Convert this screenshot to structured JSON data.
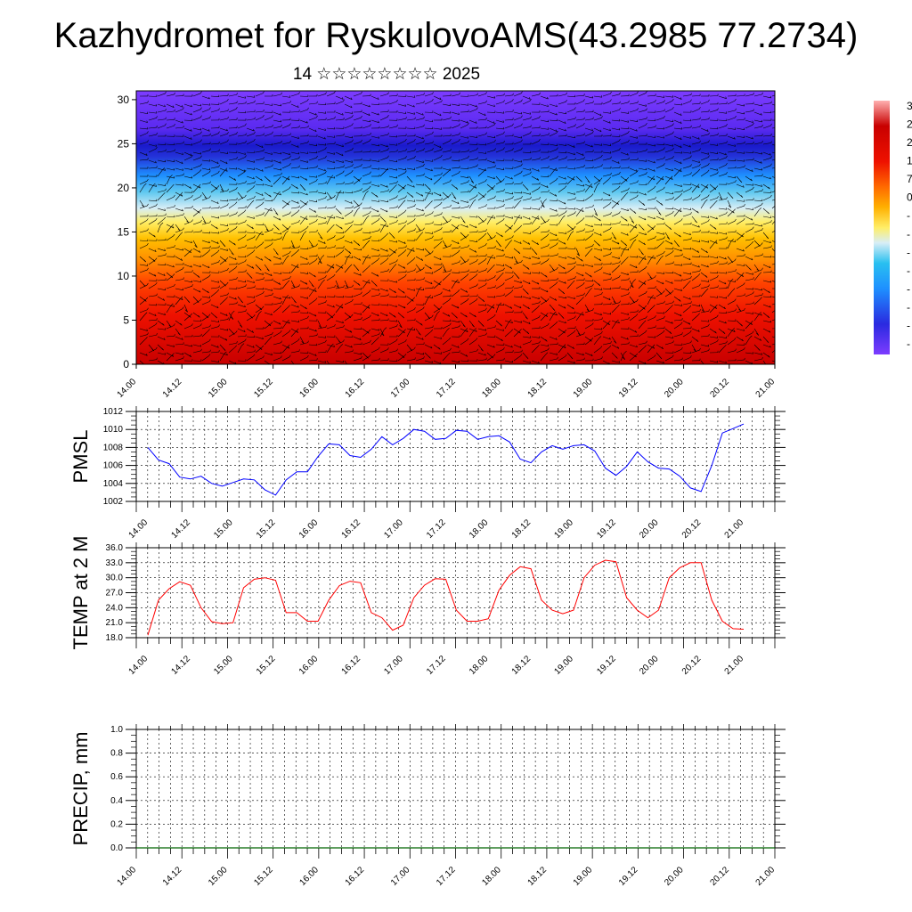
{
  "header": {
    "title": "Kazhydromet for RyskulovoAMS(43.2985 77.2734)",
    "subtitle": "14 ☆☆☆☆☆☆☆☆ 2025"
  },
  "chart_data": [
    {
      "type": "heatmap",
      "name": "vertical-cross-section",
      "title": "",
      "xlabel": "",
      "ylabel": "",
      "ylim": [
        0,
        31
      ],
      "yticks": [
        0,
        5,
        10,
        15,
        20,
        25,
        30
      ],
      "xticks": [
        "14.00",
        "14.12",
        "15.00",
        "15.12",
        "16.00",
        "16.12",
        "17.00",
        "17.12",
        "18.00",
        "18.12",
        "19.00",
        "19.12",
        "20.00",
        "20.12",
        "21.00"
      ],
      "colorbar_labels": [
        "3",
        "2",
        "2",
        "1",
        "7",
        "0",
        "-",
        "-",
        "-",
        "-",
        "-",
        "-",
        "-",
        "-"
      ],
      "overlay": "wind barbs",
      "colors": {
        "low": "#7f3fff",
        "mid_blue": "#1a1fd6",
        "cyan": "#29b6f6",
        "yellow": "#ffee58",
        "orange": "#ff9800",
        "red": "#e60000",
        "high": "#ff8080"
      }
    },
    {
      "type": "line",
      "name": "pmsl",
      "ylabel": "PMSL",
      "ylim": [
        1002,
        1012
      ],
      "yticks": [
        1002,
        1004,
        1006,
        1008,
        1010,
        1012
      ],
      "xticks": [
        "14.00",
        "14.12",
        "15.00",
        "15.12",
        "16.00",
        "16.12",
        "17.00",
        "17.12",
        "18.00",
        "18.12",
        "19.00",
        "19.12",
        "20.00",
        "20.12",
        "21.00"
      ],
      "color": "#0000ff",
      "series": [
        {
          "values": [
            1008.0,
            1006.6,
            1006.2,
            1004.7,
            1004.5,
            1004.8,
            1004.0,
            1003.7,
            1004.1,
            1004.5,
            1004.4,
            1003.3,
            1002.7,
            1004.4,
            1005.3,
            1005.3,
            1007.0,
            1008.4,
            1008.3,
            1007.1,
            1006.9,
            1007.8,
            1009.2,
            1008.3,
            1009.0,
            1010.0,
            1009.8,
            1008.9,
            1009.0,
            1009.9,
            1009.8,
            1008.9,
            1009.2,
            1009.3,
            1008.6,
            1006.7,
            1006.3,
            1007.5,
            1008.2,
            1007.8,
            1008.2,
            1008.3,
            1007.6,
            1005.7,
            1004.9,
            1005.9,
            1007.5,
            1006.4,
            1005.7,
            1005.6,
            1004.8,
            1003.5,
            1003.1,
            1006.0,
            1009.6,
            1010.1,
            1010.6
          ]
        }
      ]
    },
    {
      "type": "line",
      "name": "temp-2m",
      "ylabel": "TEMP at 2 M",
      "ylim": [
        18.0,
        36.0
      ],
      "yticks": [
        "18.0",
        "21.0",
        "24.0",
        "27.0",
        "30.0",
        "33.0",
        "36.0"
      ],
      "xticks": [
        "14.00",
        "14.12",
        "15.00",
        "15.12",
        "16.00",
        "16.12",
        "17.00",
        "17.12",
        "18.00",
        "18.12",
        "19.00",
        "19.12",
        "20.00",
        "20.12",
        "21.00"
      ],
      "color": "#ff0000",
      "series": [
        {
          "values": [
            18.5,
            25.5,
            27.8,
            29.2,
            28.5,
            24.0,
            21.2,
            20.8,
            21.0,
            28.0,
            29.7,
            30.0,
            29.5,
            23.0,
            23.0,
            21.3,
            21.3,
            25.5,
            28.4,
            29.3,
            29.0,
            23.0,
            22.0,
            19.5,
            20.5,
            26.0,
            28.5,
            29.8,
            29.7,
            23.5,
            21.3,
            21.3,
            21.8,
            27.5,
            30.5,
            32.2,
            31.8,
            25.5,
            23.5,
            22.8,
            23.5,
            30.0,
            32.5,
            33.5,
            33.2,
            26.0,
            23.5,
            22.0,
            23.5,
            30.0,
            32.0,
            33.0,
            33.0,
            25.5,
            21.3,
            19.8,
            19.7
          ]
        }
      ]
    },
    {
      "type": "bar",
      "name": "precip",
      "ylabel": "PRECIP, mm",
      "ylim": [
        0.0,
        1.0
      ],
      "yticks": [
        "0.0",
        "0.2",
        "0.4",
        "0.6",
        "0.8",
        "1.0"
      ],
      "xticks": [
        "14.00",
        "14.12",
        "15.00",
        "15.12",
        "16.00",
        "16.12",
        "17.00",
        "17.12",
        "18.00",
        "18.12",
        "19.00",
        "19.12",
        "20.00",
        "20.12",
        "21.00"
      ],
      "color": "#006400",
      "series": [
        {
          "values": [
            0,
            0,
            0,
            0,
            0,
            0,
            0,
            0,
            0,
            0,
            0,
            0,
            0,
            0,
            0,
            0,
            0,
            0,
            0,
            0,
            0,
            0,
            0,
            0,
            0,
            0,
            0,
            0,
            0,
            0,
            0,
            0,
            0,
            0,
            0,
            0,
            0,
            0,
            0,
            0,
            0,
            0,
            0,
            0,
            0,
            0,
            0,
            0,
            0,
            0,
            0,
            0,
            0,
            0,
            0,
            0,
            0
          ]
        }
      ]
    }
  ]
}
